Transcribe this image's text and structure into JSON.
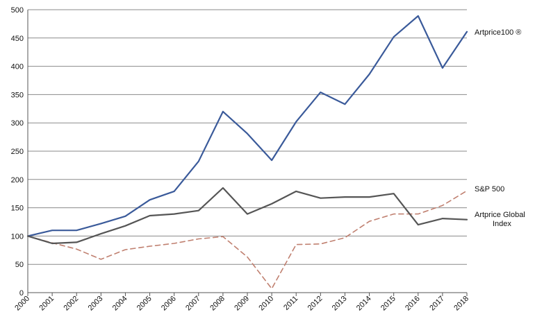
{
  "chart_data": {
    "type": "line",
    "title": "",
    "xlabel": "",
    "ylabel": "",
    "x": [
      "2000",
      "2001",
      "2002",
      "2003",
      "2004",
      "2005",
      "2006",
      "2007",
      "2008",
      "2009",
      "2010",
      "2011",
      "2012",
      "2013",
      "2014",
      "2015",
      "2016",
      "2017",
      "2018"
    ],
    "ylim": [
      0,
      500
    ],
    "yticks": [
      0,
      50,
      100,
      150,
      200,
      250,
      300,
      350,
      400,
      450,
      500
    ],
    "grid": true,
    "legend_placement": "right (labels next to line ends)",
    "series": [
      {
        "name": "Artprice100 ®",
        "label_lines": [
          "Artprice100 ®"
        ],
        "color": "#3a5a9a",
        "style": "solid",
        "values": [
          100,
          110,
          110,
          122,
          135,
          164,
          179,
          232,
          320,
          281,
          234,
          302,
          354,
          333,
          386,
          452,
          489,
          397,
          461
        ]
      },
      {
        "name": "S&P 500",
        "label_lines": [
          "S&P 500"
        ],
        "color": "#c08070",
        "style": "dashed",
        "values": [
          100,
          88,
          77,
          59,
          76,
          82,
          87,
          95,
          99,
          63,
          7,
          85,
          86,
          97,
          126,
          139,
          139,
          154,
          180
        ]
      },
      {
        "name": "Artprice Global Index",
        "label_lines": [
          "Artprice Global",
          "Index"
        ],
        "color": "#555555",
        "style": "solid",
        "values": [
          100,
          87,
          89,
          104,
          118,
          136,
          139,
          145,
          185,
          139,
          157,
          179,
          167,
          169,
          169,
          175,
          120,
          131,
          129
        ]
      }
    ]
  }
}
